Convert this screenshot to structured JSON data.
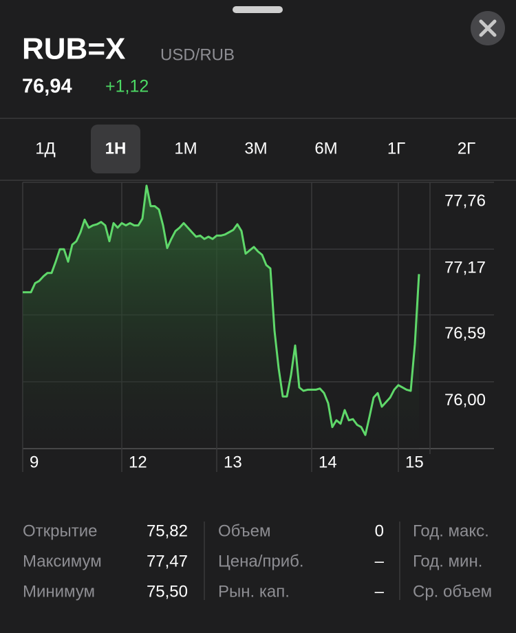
{
  "header": {
    "symbol": "RUB=X",
    "name": "USD/RUB",
    "price": "76,94",
    "change": "+1,12"
  },
  "tabs": {
    "items": [
      "1Д",
      "1Н",
      "1М",
      "3М",
      "6М",
      "1Г",
      "2Г"
    ],
    "selected": 1
  },
  "chart_data": {
    "type": "line",
    "color": "#5fd86a",
    "grid": true,
    "categories": [
      "9",
      null,
      null,
      null,
      null,
      null,
      null,
      null,
      null,
      null,
      null,
      null,
      null,
      null,
      null,
      null,
      null,
      null,
      null,
      null,
      null,
      null,
      null,
      null,
      "12",
      null,
      null,
      null,
      null,
      null,
      null,
      null,
      null,
      null,
      null,
      null,
      null,
      null,
      null,
      null,
      null,
      null,
      null,
      null,
      null,
      null,
      null,
      "13",
      null,
      null,
      null,
      null,
      null,
      null,
      null,
      null,
      null,
      null,
      null,
      null,
      null,
      null,
      null,
      null,
      null,
      null,
      null,
      null,
      null,
      null,
      "14",
      null,
      null,
      null,
      null,
      null,
      null,
      null,
      null,
      null,
      null,
      null,
      null,
      null,
      null,
      null,
      null,
      null,
      null,
      null,
      null,
      "15",
      null,
      null,
      null,
      null,
      null
    ],
    "values": [
      76.79,
      76.79,
      76.79,
      76.87,
      76.89,
      76.93,
      76.96,
      76.96,
      77.06,
      77.17,
      77.17,
      77.06,
      77.21,
      77.24,
      77.32,
      77.43,
      77.36,
      77.38,
      77.39,
      77.41,
      77.38,
      77.24,
      77.4,
      77.36,
      77.4,
      77.38,
      77.4,
      77.38,
      77.38,
      77.44,
      77.73,
      77.55,
      77.55,
      77.52,
      77.38,
      77.18,
      77.26,
      77.33,
      77.36,
      77.4,
      77.36,
      77.32,
      77.28,
      77.29,
      77.26,
      77.28,
      77.26,
      77.29,
      77.29,
      77.3,
      77.32,
      77.34,
      77.39,
      77.33,
      77.13,
      77.16,
      77.19,
      77.15,
      77.12,
      77.03,
      77.0,
      76.45,
      76.12,
      75.87,
      75.87,
      76.06,
      76.32,
      75.95,
      75.92,
      75.93,
      75.93,
      75.93,
      75.94,
      75.9,
      75.81,
      75.6,
      75.66,
      75.63,
      75.75,
      75.66,
      75.67,
      75.62,
      75.6,
      75.53,
      75.69,
      75.86,
      75.9,
      75.78,
      75.82,
      75.86,
      75.93,
      75.97,
      75.95,
      75.93,
      75.92,
      76.33,
      76.95
    ],
    "ylim": [
      75.41,
      77.76
    ],
    "yticks": [
      {
        "value": 77.76,
        "label": "77,76"
      },
      {
        "value": 77.17,
        "label": "77,17"
      },
      {
        "value": 76.59,
        "label": "76,59"
      },
      {
        "value": 76.0,
        "label": "76,00"
      }
    ]
  },
  "stats": {
    "col1": [
      [
        "Открытие",
        "75,82"
      ],
      [
        "Максимум",
        "77,47"
      ],
      [
        "Минимум",
        "75,50"
      ]
    ],
    "col2": [
      [
        "Объем",
        "0"
      ],
      [
        "Цена/приб.",
        "–"
      ],
      [
        "Рын. кап.",
        "–"
      ]
    ],
    "col3": [
      "Год. макс.",
      "Год. мин.",
      "Ср. объем"
    ]
  }
}
